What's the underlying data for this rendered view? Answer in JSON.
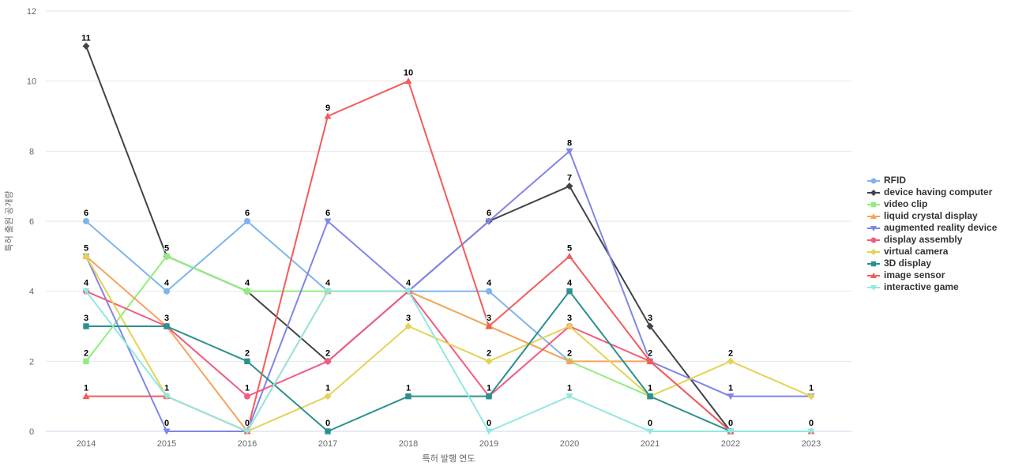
{
  "chart": {
    "y_ticks": [
      0,
      2,
      4,
      6,
      8,
      10,
      12
    ],
    "grid_color": "#e6e6e6",
    "axis_line_color": "#ccd6eb",
    "tick_label_color": "#666666",
    "data_label_color": "#000000"
  },
  "chart_data": {
    "type": "line",
    "title": "",
    "xlabel": "특허 발행 연도",
    "ylabel": "특허 출원 공개량",
    "ylim": [
      0,
      12
    ],
    "grid": true,
    "legend_position": "right",
    "categories": [
      "2014",
      "2015",
      "2016",
      "2017",
      "2018",
      "2019",
      "2020",
      "2021",
      "2022",
      "2023"
    ],
    "series": [
      {
        "name": "RFID",
        "color": "#7cb5ec",
        "symbol": "circle",
        "values": [
          6,
          4,
          6,
          4,
          4,
          4,
          2,
          null,
          null,
          null
        ]
      },
      {
        "name": "device having computer",
        "color": "#434348",
        "symbol": "diamond",
        "values": [
          11,
          5,
          4,
          2,
          4,
          6,
          7,
          3,
          0,
          null
        ]
      },
      {
        "name": "video clip",
        "color": "#90ed7d",
        "symbol": "square",
        "values": [
          2,
          5,
          4,
          4,
          4,
          3,
          2,
          1,
          null,
          null
        ]
      },
      {
        "name": "liquid crystal display",
        "color": "#f7a35c",
        "symbol": "triangle",
        "values": [
          5,
          3,
          0,
          4,
          4,
          3,
          2,
          2,
          null,
          null
        ]
      },
      {
        "name": "augmented reality device",
        "color": "#8085e9",
        "symbol": "triangle-down",
        "values": [
          5,
          0,
          0,
          6,
          4,
          6,
          8,
          2,
          1,
          1
        ]
      },
      {
        "name": "display assembly",
        "color": "#f15c80",
        "symbol": "circle",
        "values": [
          4,
          3,
          1,
          2,
          4,
          1,
          3,
          2,
          0,
          null
        ]
      },
      {
        "name": "virtual camera",
        "color": "#e4d354",
        "symbol": "diamond",
        "values": [
          5,
          1,
          0,
          1,
          3,
          2,
          3,
          1,
          2,
          1
        ]
      },
      {
        "name": "3D display",
        "color": "#2b908f",
        "symbol": "square",
        "values": [
          3,
          3,
          2,
          0,
          1,
          1,
          4,
          1,
          0,
          null
        ]
      },
      {
        "name": "image sensor",
        "color": "#f45b5b",
        "symbol": "triangle",
        "values": [
          1,
          1,
          0,
          9,
          10,
          3,
          5,
          2,
          0,
          0
        ]
      },
      {
        "name": "interactive game",
        "color": "#91e8e1",
        "symbol": "triangle-down",
        "values": [
          4,
          1,
          0,
          4,
          4,
          0,
          1,
          0,
          0,
          0
        ]
      }
    ]
  }
}
